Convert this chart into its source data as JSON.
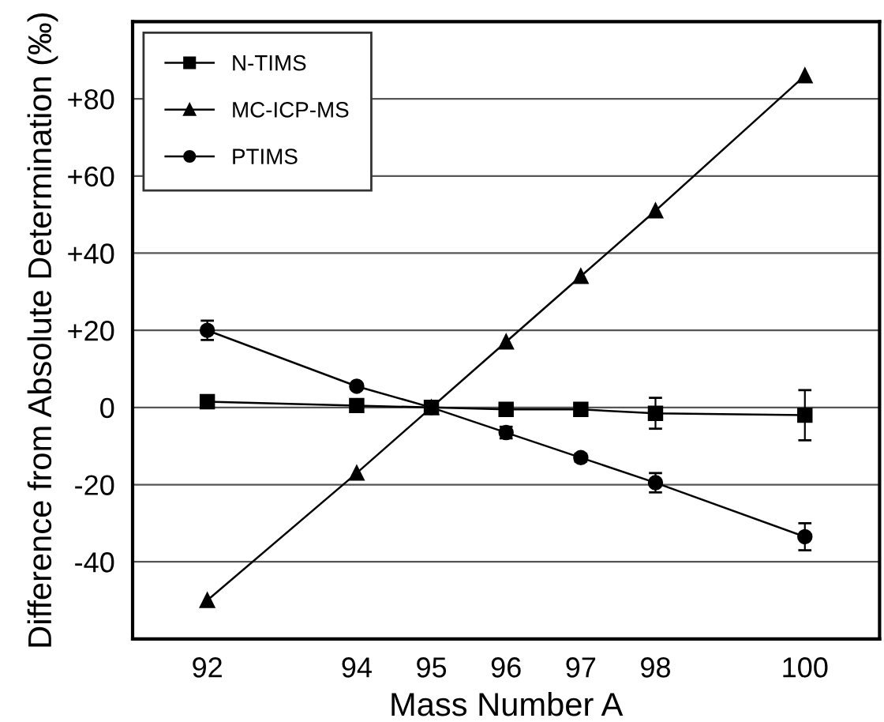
{
  "chart_data": {
    "type": "line",
    "xlabel": "Mass Number A",
    "ylabel": "Difference from Absolute Determination (‰)",
    "xlim": [
      91,
      101
    ],
    "xticks": [
      92,
      94,
      95,
      96,
      97,
      98,
      100
    ],
    "ylim": [
      -60,
      100
    ],
    "yticks": [
      {
        "value": 80,
        "label": "+80"
      },
      {
        "value": 60,
        "label": "+60"
      },
      {
        "value": 40,
        "label": "+40"
      },
      {
        "value": 20,
        "label": "+20"
      },
      0,
      -20,
      -40
    ],
    "grid": "y",
    "legend": "top left",
    "line_style": "solid",
    "series": [
      {
        "name": "N-TIMS",
        "color": "#000000",
        "marker": "square",
        "x": [
          92,
          94,
          95,
          96,
          97,
          98,
          100
        ],
        "values": [
          1.5,
          0.5,
          0,
          -0.5,
          -0.5,
          -1.5,
          -2
        ],
        "errors": [
          null,
          null,
          null,
          null,
          1.5,
          4,
          6.5
        ]
      },
      {
        "name": "MC-ICP-MS",
        "color": "#000000",
        "marker": "triangle",
        "x": [
          92,
          94,
          95,
          96,
          97,
          98,
          100
        ],
        "values": [
          -50,
          -17,
          0,
          17,
          34,
          51,
          86
        ]
      },
      {
        "name": "PTIMS",
        "color": "#000000",
        "marker": "circle",
        "x": [
          92,
          94,
          95,
          96,
          97,
          98,
          100
        ],
        "values": [
          20,
          5.5,
          0,
          -6.5,
          -13,
          -19.5,
          -33.5
        ],
        "errors": [
          2.5,
          null,
          null,
          1.5,
          1,
          2.5,
          3.5
        ]
      }
    ]
  }
}
